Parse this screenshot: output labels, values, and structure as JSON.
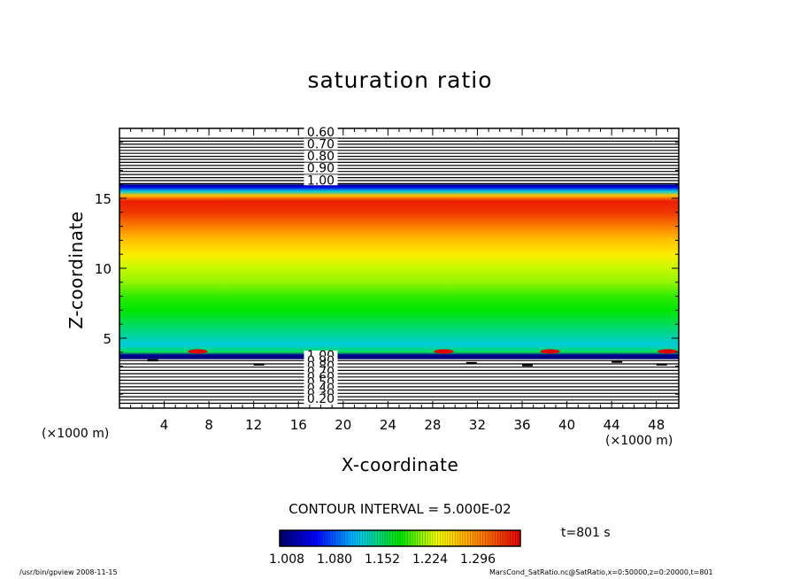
{
  "chart_data": {
    "type": "contour",
    "title": "saturation ratio",
    "xlabel": "X-coordinate",
    "ylabel": "Z-coordinate",
    "x_unit": "(×1000 m)",
    "z_unit": "(×1000 m)",
    "xlim": [
      0,
      50
    ],
    "zlim": [
      0,
      20
    ],
    "x_ticks": [
      4,
      8,
      12,
      16,
      20,
      24,
      28,
      32,
      36,
      40,
      44,
      48
    ],
    "z_ticks": [
      5,
      10,
      15
    ],
    "contour_interval": "CONTOUR INTERVAL = 5.000E-02",
    "time_label": "t=801 s",
    "colorbar": {
      "min": 1.008,
      "max": 1.332,
      "tick_labels": [
        "1.008",
        "1.080",
        "1.152",
        "1.224",
        "1.296"
      ]
    },
    "upper_contour_labels": [
      "0.60",
      "0.70",
      "0.80",
      "0.90",
      "1.00"
    ],
    "lower_contour_labels": [
      "1.00",
      "0.90",
      "0.80",
      "0.70",
      "0.60",
      "0.50",
      "0.40",
      "0.30",
      "0.20"
    ],
    "vertical_profile": [
      {
        "z": 3.5,
        "value": 1.01
      },
      {
        "z": 3.8,
        "value": 1.02
      },
      {
        "z": 4.0,
        "value": 1.15
      },
      {
        "z": 4.5,
        "value": 1.12
      },
      {
        "z": 5.0,
        "value": 1.13
      },
      {
        "z": 6.0,
        "value": 1.15
      },
      {
        "z": 7.0,
        "value": 1.17
      },
      {
        "z": 8.0,
        "value": 1.18
      },
      {
        "z": 9.0,
        "value": 1.2
      },
      {
        "z": 10.0,
        "value": 1.21
      },
      {
        "z": 11.0,
        "value": 1.23
      },
      {
        "z": 12.0,
        "value": 1.25
      },
      {
        "z": 13.0,
        "value": 1.28
      },
      {
        "z": 14.0,
        "value": 1.31
      },
      {
        "z": 14.8,
        "value": 1.32
      },
      {
        "z": 15.2,
        "value": 1.25
      },
      {
        "z": 15.5,
        "value": 1.12
      },
      {
        "z": 15.8,
        "value": 1.05
      },
      {
        "z": 16.0,
        "value": 1.01
      }
    ]
  },
  "footer": {
    "program": "/usr/bin/gpview   2008-11-15",
    "source": "MarsCond_SatRatio.nc@SatRatio,x=0:50000,z=0:20000,t=801"
  }
}
